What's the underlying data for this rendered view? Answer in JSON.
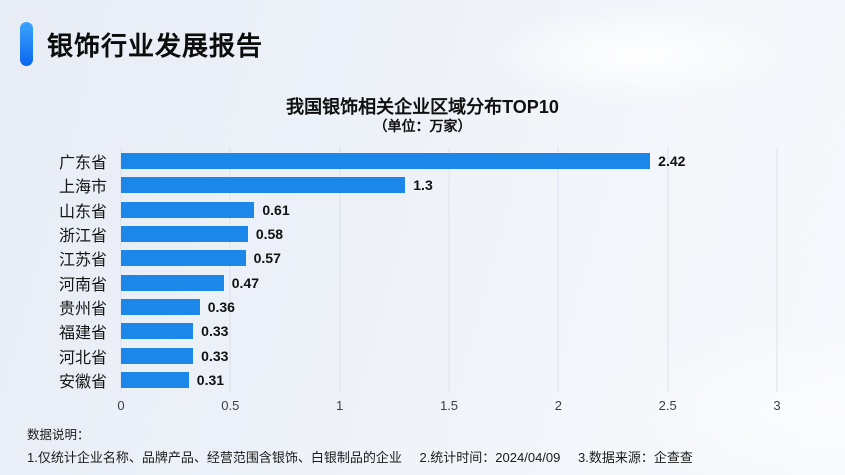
{
  "header": {
    "title": "银饰行业发展报告"
  },
  "chart_data": {
    "type": "bar",
    "orientation": "horizontal",
    "title": "我国银饰相关企业区域分布TOP10",
    "subtitle": "（单位：万家）",
    "categories": [
      "广东省",
      "上海市",
      "山东省",
      "浙江省",
      "江苏省",
      "河南省",
      "贵州省",
      "福建省",
      "河北省",
      "安徽省"
    ],
    "values": [
      2.42,
      1.3,
      0.61,
      0.58,
      0.57,
      0.47,
      0.36,
      0.33,
      0.33,
      0.31
    ],
    "value_labels": [
      "2.42",
      "1.3",
      "0.61",
      "0.58",
      "0.57",
      "0.47",
      "0.36",
      "0.33",
      "0.33",
      "0.31"
    ],
    "xlabel": "",
    "ylabel": "",
    "xlim": [
      0,
      3
    ],
    "xticks": [
      0,
      0.5,
      1,
      1.5,
      2,
      2.5,
      3
    ],
    "xtick_labels": [
      "0",
      "0.5",
      "1",
      "1.5",
      "2",
      "2.5",
      "3"
    ],
    "grid": "vertical",
    "legend": null,
    "bar_color": "#1b88e9"
  },
  "footnote": {
    "heading": "数据说明：",
    "items": [
      "1.仅统计企业名称、品牌产品、经营范围含银饰、白银制品的企业",
      "2.统计时间：2024/04/09",
      "3.数据来源：企查查"
    ]
  },
  "colors": {
    "accent_blue": "#1b88e9",
    "accent_gradient_top": "#3ba4fb",
    "accent_gradient_bottom": "#0a67ee",
    "background_left": "#e8ecf5",
    "background_right": "#f6f8fc",
    "gridline": "#dce0ea",
    "text_dark": "#101010"
  }
}
